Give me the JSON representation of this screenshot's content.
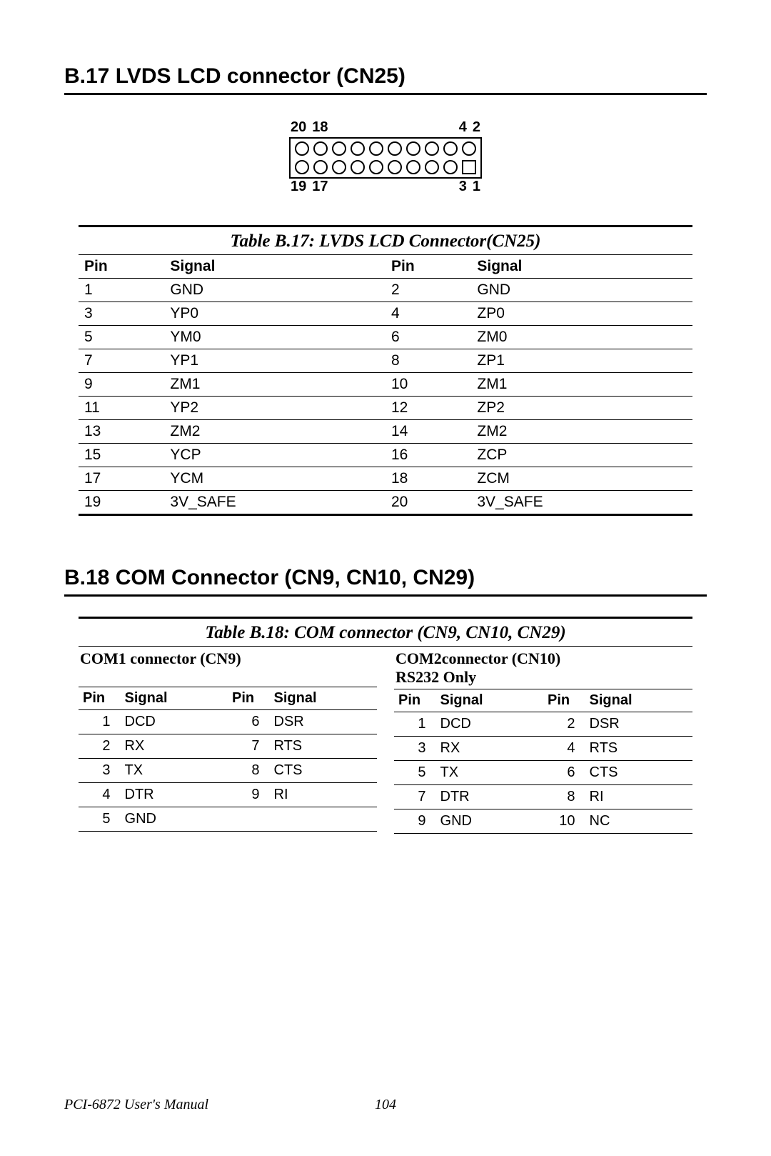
{
  "colors": {
    "text": "#000000",
    "bg": "#ffffff",
    "rule": "#000000"
  },
  "typography": {
    "heading_font": "Arial, Helvetica, sans-serif",
    "heading_size_pt": 22,
    "caption_font": "Times New Roman, Times, serif",
    "caption_style": "italic bold",
    "caption_size_pt": 18,
    "body_font": "Arial, Helvetica, sans-serif",
    "body_size_pt": 15
  },
  "section_b17": {
    "heading": "B.17 LVDS LCD connector (CN25)",
    "connector_diagram": {
      "top_labels_left": [
        "20",
        "18"
      ],
      "top_labels_right": [
        "4",
        "2"
      ],
      "bottom_labels_left": [
        "19",
        "17"
      ],
      "bottom_labels_right": [
        "3",
        "1"
      ],
      "rows": 2,
      "cols": 10,
      "pin1_shape": "square",
      "pin_shape": "circle",
      "pin_outline": "#000000",
      "pin_fill": "#ffffff",
      "box_border_color": "#000000"
    },
    "table": {
      "caption": "Table B.17: LVDS LCD Connector(CN25)",
      "columns": [
        "Pin",
        "Signal",
        "Pin",
        "Signal"
      ],
      "rows": [
        [
          "1",
          "GND",
          "2",
          "GND"
        ],
        [
          "3",
          "YP0",
          "4",
          "ZP0"
        ],
        [
          "5",
          "YM0",
          "6",
          "ZM0"
        ],
        [
          "7",
          "YP1",
          "8",
          "ZP1"
        ],
        [
          "9",
          "ZM1",
          "10",
          "ZM1"
        ],
        [
          "11",
          "YP2",
          "12",
          "ZP2"
        ],
        [
          "13",
          "ZM2",
          "14",
          "ZM2"
        ],
        [
          "15",
          "YCP",
          "16",
          "ZCP"
        ],
        [
          "17",
          "YCM",
          "18",
          "ZCM"
        ],
        [
          "19",
          "3V_SAFE",
          "20",
          "3V_SAFE"
        ]
      ]
    }
  },
  "section_b18": {
    "heading": "B.18 COM Connector (CN9, CN10, CN29)",
    "caption": "Table B.18: COM connector (CN9, CN10, CN29)",
    "left": {
      "subhead": "COM1 connector (CN9)",
      "columns": [
        "Pin",
        "Signal",
        "Pin",
        "Signal"
      ],
      "rows": [
        [
          "1",
          "DCD",
          "6",
          "DSR"
        ],
        [
          "2",
          "RX",
          "7",
          "RTS"
        ],
        [
          "3",
          "TX",
          "8",
          "CTS"
        ],
        [
          "4",
          "DTR",
          "9",
          "RI"
        ],
        [
          "5",
          "GND",
          "",
          ""
        ]
      ]
    },
    "right": {
      "subhead_line1": "COM2connector (CN10)",
      "subhead_line2": "RS232 Only",
      "columns": [
        "Pin",
        "Signal",
        "Pin",
        "Signal"
      ],
      "rows": [
        [
          "1",
          "DCD",
          "2",
          "DSR"
        ],
        [
          "3",
          "RX",
          "4",
          "RTS"
        ],
        [
          "5",
          "TX",
          "6",
          "CTS"
        ],
        [
          "7",
          "DTR",
          "8",
          "RI"
        ],
        [
          "9",
          "GND",
          "10",
          "NC"
        ]
      ]
    }
  },
  "footer": {
    "manual": "PCI-6872 User's Manual",
    "page": "104"
  }
}
